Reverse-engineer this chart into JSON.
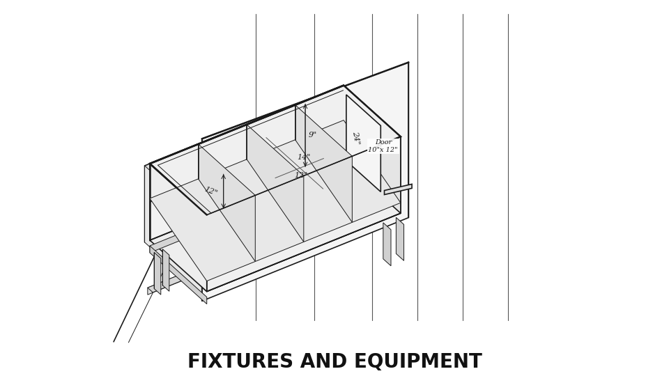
{
  "title": "FIXTURES AND EQUIPMENT",
  "title_fontsize": 20,
  "title_fontweight": "bold",
  "bg_color": "#ffffff",
  "line_color": "#1a1a1a",
  "lw": 1.2,
  "lw_thin": 0.7,
  "lw_thick": 1.8,
  "note_9": "9\"",
  "note_14": "14\"",
  "note_12a": "12\"",
  "note_12b": "12\"",
  "note_24": "24\"",
  "note_door": "Door\n10\"x 12\""
}
